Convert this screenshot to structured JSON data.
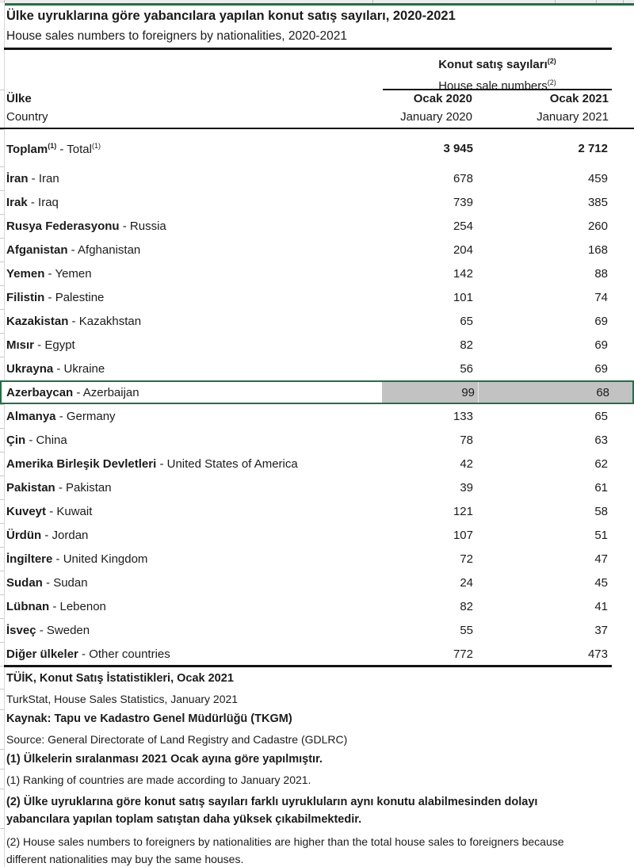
{
  "title": {
    "tr": "Ülke uyruklarına göre yabancılara yapılan konut satış sayıları, 2020-2021",
    "en": "House sales numbers to foreigners by nationalities, 2020-2021"
  },
  "table": {
    "separator": " - ",
    "group_header": {
      "tr": "Konut satış sayıları",
      "en": "House sale numbers",
      "footnote_ref": "(2)"
    },
    "country_header": {
      "tr": "Ülke",
      "en": "Country"
    },
    "columns": [
      {
        "tr": "Ocak 2020",
        "en": "January 2020"
      },
      {
        "tr": "Ocak 2021",
        "en": "January 2021"
      }
    ],
    "total_row": {
      "tr": "Toplam",
      "en": "Total",
      "footnote_ref": "(1)",
      "v2020": "3 945",
      "v2021": "2 712"
    },
    "rows": [
      {
        "tr": "İran",
        "en": "Iran",
        "v2020": "678",
        "v2021": "459",
        "highlighted": false
      },
      {
        "tr": "Irak",
        "en": "Iraq",
        "v2020": "739",
        "v2021": "385",
        "highlighted": false
      },
      {
        "tr": "Rusya Federasyonu",
        "en": "Russia",
        "v2020": "254",
        "v2021": "260",
        "highlighted": false
      },
      {
        "tr": "Afganistan",
        "en": "Afghanistan",
        "v2020": "204",
        "v2021": "168",
        "highlighted": false
      },
      {
        "tr": "Yemen",
        "en": "Yemen",
        "v2020": "142",
        "v2021": "88",
        "highlighted": false
      },
      {
        "tr": "Filistin",
        "en": "Palestine",
        "v2020": "101",
        "v2021": "74",
        "highlighted": false
      },
      {
        "tr": "Kazakistan",
        "en": "Kazakhstan",
        "v2020": "65",
        "v2021": "69",
        "highlighted": false
      },
      {
        "tr": "Mısır",
        "en": "Egypt",
        "v2020": "82",
        "v2021": "69",
        "highlighted": false
      },
      {
        "tr": "Ukrayna",
        "en": "Ukraine",
        "v2020": "56",
        "v2021": "69",
        "highlighted": false
      },
      {
        "tr": "Azerbaycan",
        "en": "Azerbaijan",
        "v2020": "99",
        "v2021": "68",
        "highlighted": true
      },
      {
        "tr": "Almanya",
        "en": "Germany",
        "v2020": "133",
        "v2021": "65",
        "highlighted": false
      },
      {
        "tr": "Çin",
        "en": "China",
        "v2020": "78",
        "v2021": "63",
        "highlighted": false
      },
      {
        "tr": "Amerika Birleşik Devletleri",
        "en": "United States of America",
        "v2020": "42",
        "v2021": "62",
        "highlighted": false
      },
      {
        "tr": "Pakistan",
        "en": "Pakistan",
        "v2020": "39",
        "v2021": "61",
        "highlighted": false
      },
      {
        "tr": "Kuveyt",
        "en": "Kuwait",
        "v2020": "121",
        "v2021": "58",
        "highlighted": false
      },
      {
        "tr": "Ürdün",
        "en": "Jordan",
        "v2020": "107",
        "v2021": "51",
        "highlighted": false
      },
      {
        "tr": "İngiltere",
        "en": "United Kingdom",
        "v2020": "72",
        "v2021": "47",
        "highlighted": false
      },
      {
        "tr": "Sudan",
        "en": "Sudan",
        "v2020": "24",
        "v2021": "45",
        "highlighted": false
      },
      {
        "tr": "Lübnan",
        "en": "Lebenon",
        "v2020": "82",
        "v2021": "41",
        "highlighted": false
      },
      {
        "tr": "İsveç",
        "en": "Sweden",
        "v2020": "55",
        "v2021": "37",
        "highlighted": false
      },
      {
        "tr": "Diğer ülkeler",
        "en": "Other countries",
        "v2020": "772",
        "v2021": "473",
        "highlighted": false
      }
    ]
  },
  "footer": {
    "lines": [
      {
        "text": "TÜİK, Konut Satış İstatistikleri, Ocak 2021",
        "bold": true,
        "multiline": false
      },
      {
        "text": "TurkStat, House Sales Statistics, January 2021",
        "bold": false,
        "multiline": false
      },
      {
        "text": "Kaynak: Tapu ve Kadastro Genel Müdürlüğü (TKGM)",
        "bold": true,
        "multiline": false
      },
      {
        "text": "Source: General Directorate of Land Registry and Cadastre (GDLRC)",
        "bold": false,
        "multiline": false
      },
      {
        "text": "(1) Ülkelerin sıralanması 2021 Ocak ayına göre yapılmıştır.",
        "bold": true,
        "multiline": false
      },
      {
        "text": "(1) Ranking of countries are made according to January 2021.",
        "bold": false,
        "multiline": false
      },
      {
        "text": "(2) Ülke uyruklarına göre konut satış sayıları farklı uyrukluların aynı konutu alabilmesinden dolayı yabancılara yapılan toplam satıştan daha yüksek çıkabilmektedir.",
        "bold": true,
        "multiline": true
      },
      {
        "text": "(2) House sales numbers to foreigners by nationalities are higher than the total house sales to foreigners because different nationalities may buy the same houses.",
        "bold": false,
        "multiline": true
      }
    ]
  },
  "colors": {
    "selection_green": "#1f7145",
    "highlight_gray": "#c2c2c2",
    "rule_black": "#141414",
    "gridline_gray": "#c9c9c9"
  }
}
